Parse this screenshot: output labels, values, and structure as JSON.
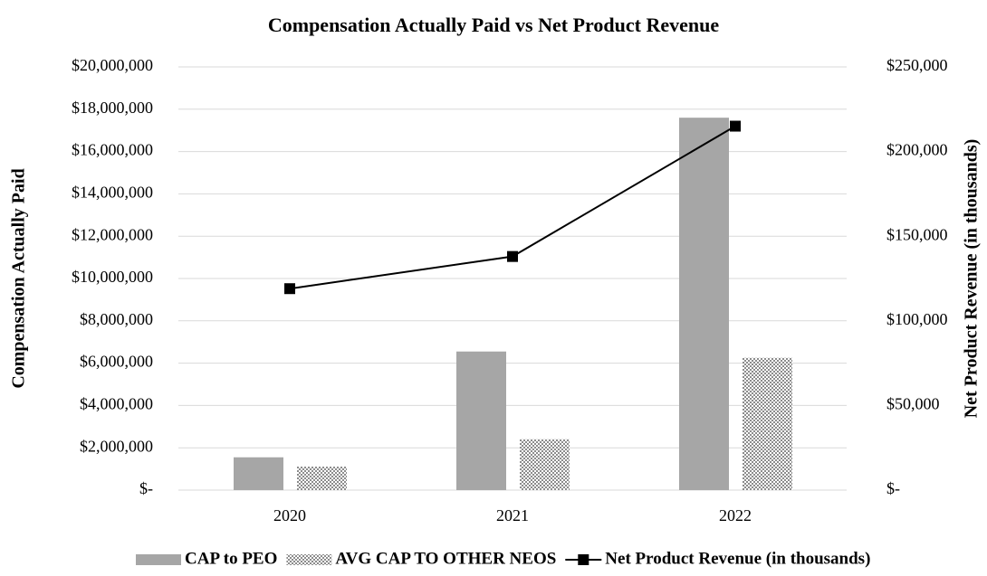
{
  "chart_data": {
    "type": "bar_line",
    "title": "Compensation Actually Paid vs Net Product Revenue",
    "y_label": "Compensation Actually Paid",
    "y2_label": "Net Product Revenue (in thousands)",
    "categories": [
      "2020",
      "2021",
      "2022"
    ],
    "series": [
      {
        "name": "CAP to PEO",
        "type": "bar",
        "color": "#a6a6a6",
        "values": [
          1550000,
          6550000,
          17600000
        ]
      },
      {
        "name": "AVG CAP TO OTHER NEOS",
        "type": "bar",
        "color": "#8c8c8c",
        "pattern": "checker",
        "values": [
          1110000,
          2400000,
          6250000
        ]
      },
      {
        "name": "Net Product Revenue (in thousands)",
        "type": "line",
        "axis": "y2",
        "color": "#000000",
        "values": [
          119000,
          138000,
          215000
        ]
      }
    ],
    "ylim": [
      0,
      20000000
    ],
    "yticks": [
      {
        "value": 0,
        "label": "$-"
      },
      {
        "value": 2000000,
        "label": "$2,000,000"
      },
      {
        "value": 4000000,
        "label": "$4,000,000"
      },
      {
        "value": 6000000,
        "label": "$6,000,000"
      },
      {
        "value": 8000000,
        "label": "$8,000,000"
      },
      {
        "value": 10000000,
        "label": "$10,000,000"
      },
      {
        "value": 12000000,
        "label": "$12,000,000"
      },
      {
        "value": 14000000,
        "label": "$14,000,000"
      },
      {
        "value": 16000000,
        "label": "$16,000,000"
      },
      {
        "value": 18000000,
        "label": "$18,000,000"
      },
      {
        "value": 20000000,
        "label": "$20,000,000"
      }
    ],
    "y2lim": [
      0,
      250000
    ],
    "y2ticks": [
      {
        "value": 0,
        "label": "$-"
      },
      {
        "value": 50000,
        "label": "$50,000"
      },
      {
        "value": 100000,
        "label": "$100,000"
      },
      {
        "value": 150000,
        "label": "$150,000"
      },
      {
        "value": 200000,
        "label": "$200,000"
      },
      {
        "value": 250000,
        "label": "$250,000"
      }
    ],
    "grid": true,
    "legend": "bottom"
  }
}
